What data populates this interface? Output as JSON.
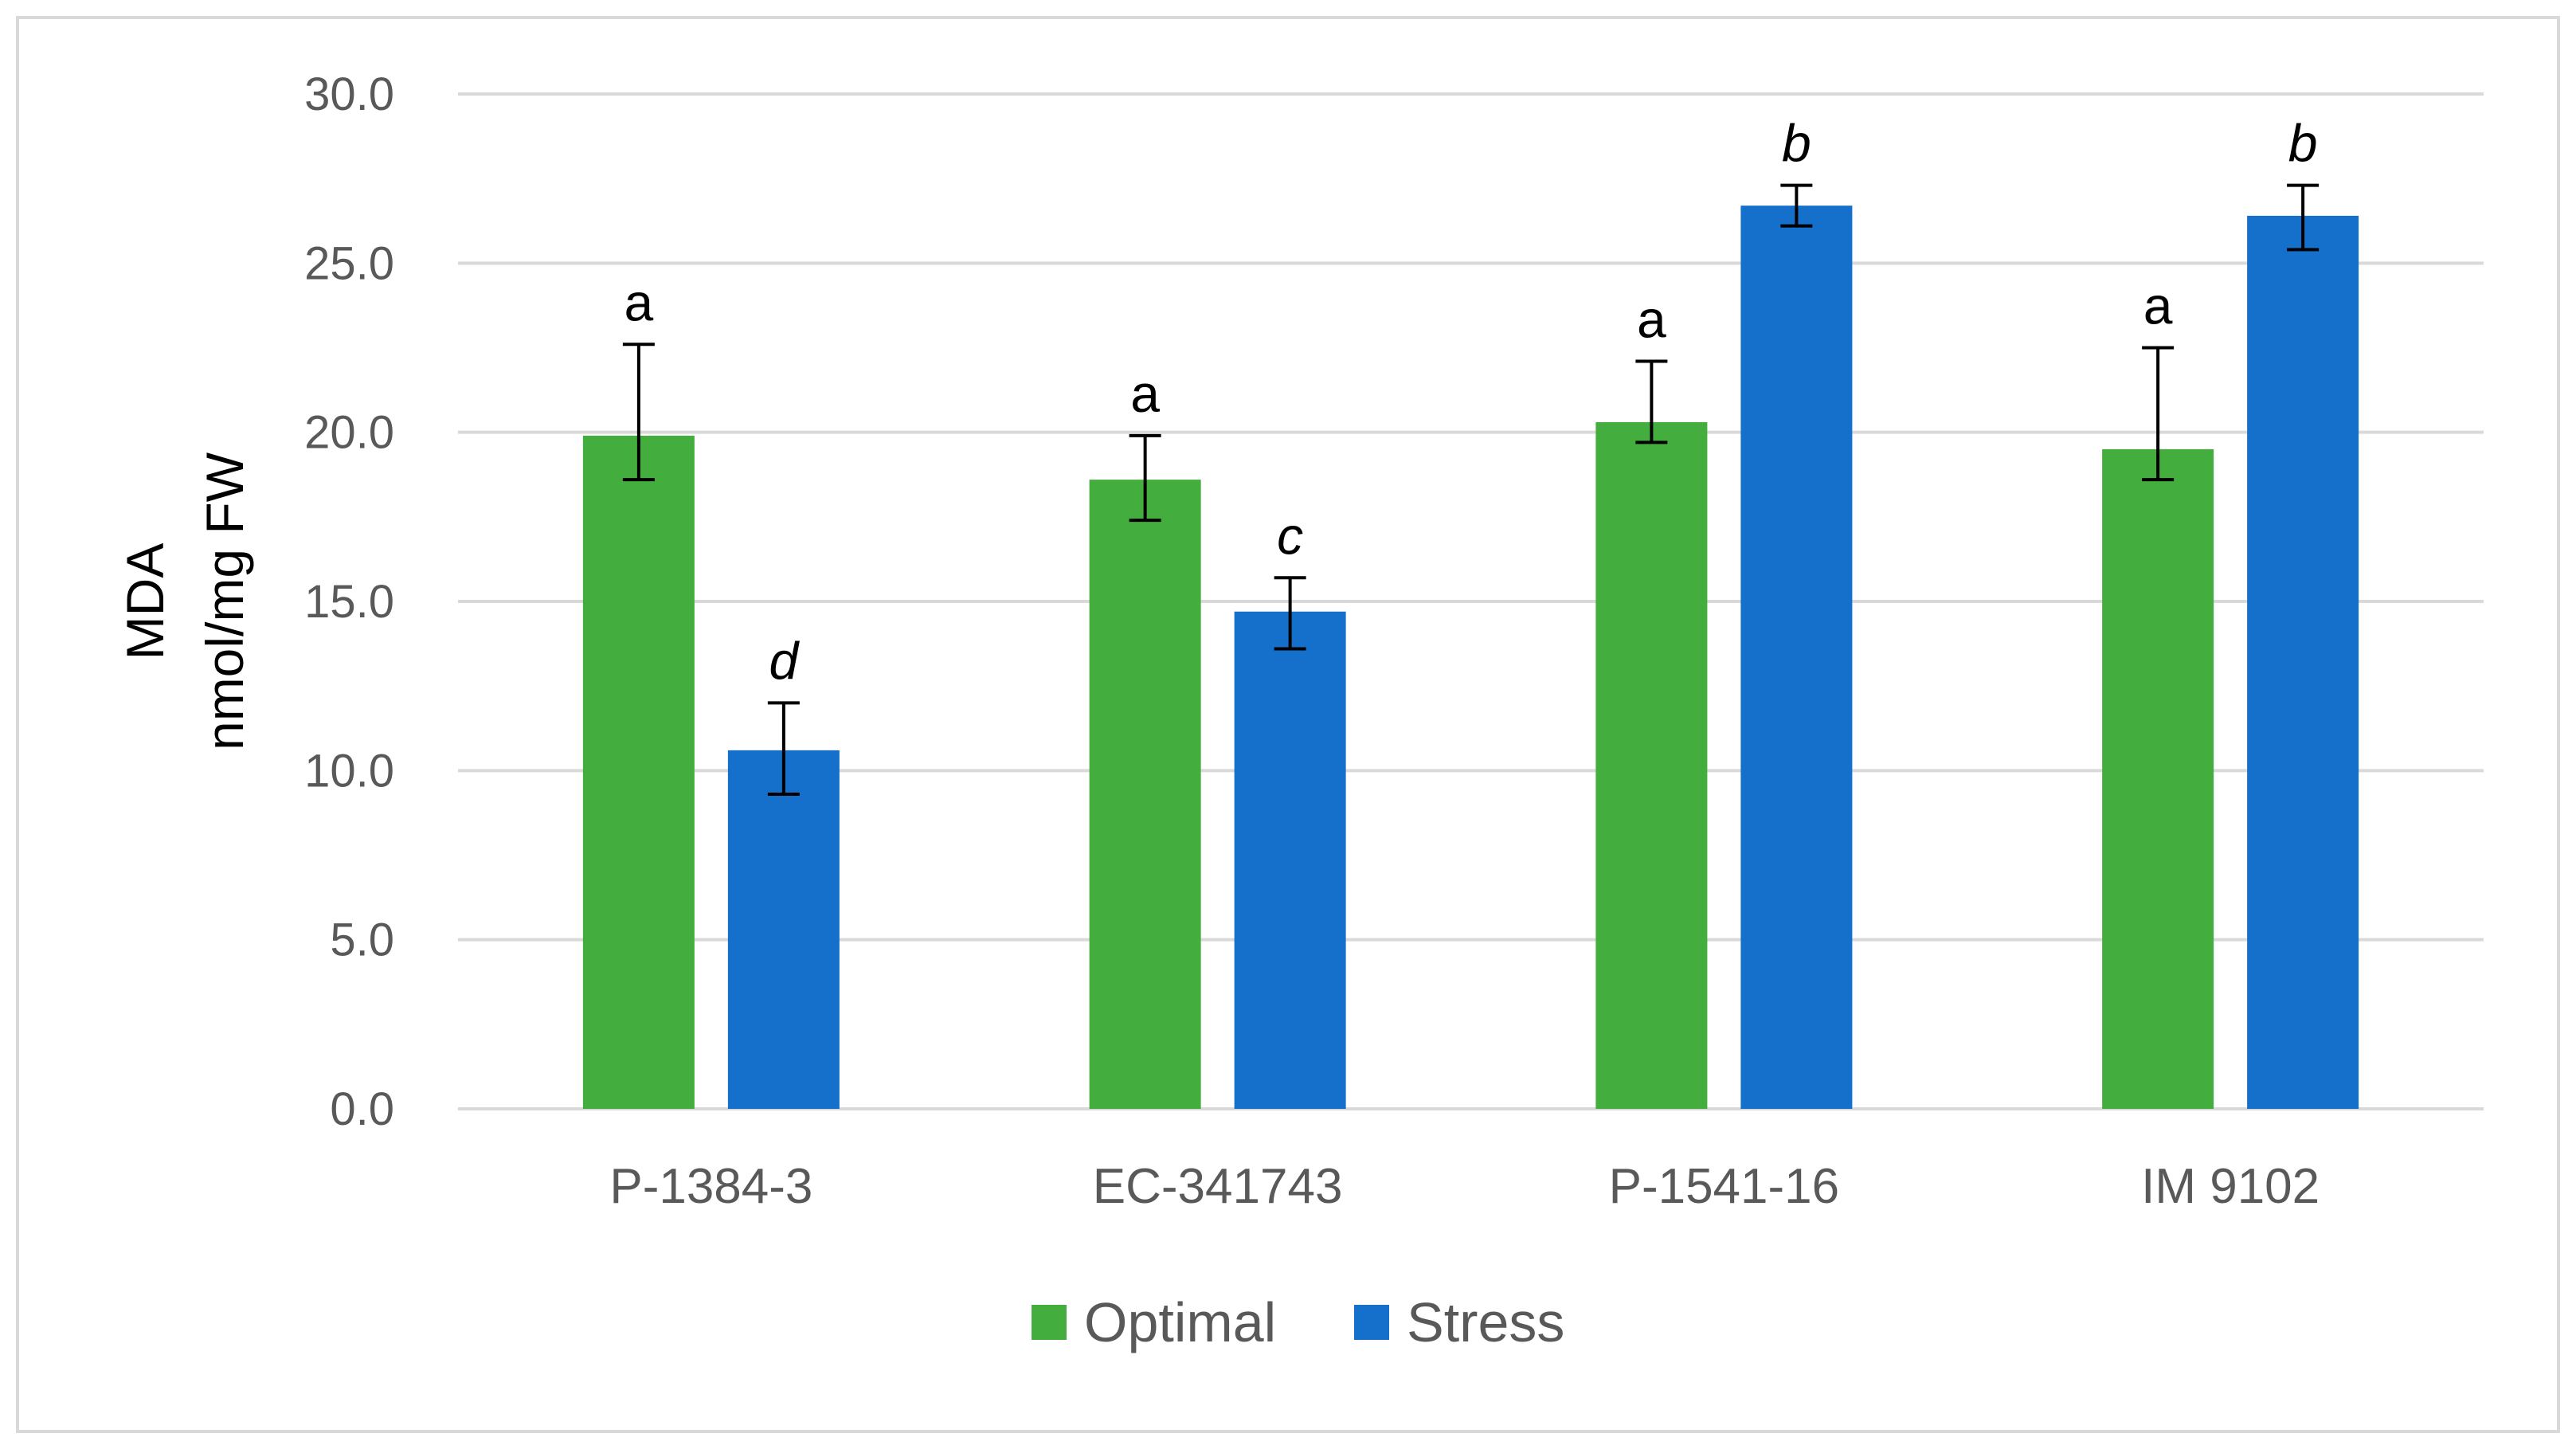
{
  "chart_data": {
    "type": "bar",
    "title": "",
    "xlabel": "",
    "ylabel_lines": [
      "MDA",
      "nmol/mg FW"
    ],
    "ylim": [
      0,
      30
    ],
    "yticks": [
      "0.0",
      "5.0",
      "10.0",
      "15.0",
      "20.0",
      "25.0",
      "30.0"
    ],
    "grid": true,
    "legend_position": "bottom",
    "categories": [
      "P-1384-3",
      "EC-341743",
      "P-1541-16",
      "IM 9102"
    ],
    "series": [
      {
        "name": "Optimal",
        "color": "#43AE3D",
        "values": [
          19.9,
          18.6,
          20.3,
          19.5
        ],
        "error_low": [
          1.3,
          1.2,
          0.6,
          0.9
        ],
        "error_high": [
          2.7,
          1.3,
          1.8,
          3.0
        ],
        "letters": [
          "a",
          "a",
          "a",
          "a"
        ],
        "letters_italic": false
      },
      {
        "name": "Stress",
        "color": "#1570CC",
        "values": [
          10.6,
          14.7,
          26.7,
          26.4
        ],
        "error_low": [
          1.3,
          1.1,
          0.6,
          1.0
        ],
        "error_high": [
          1.4,
          1.0,
          0.6,
          0.9
        ],
        "letters": [
          "d",
          "c",
          "b",
          "b"
        ],
        "letters_italic": true
      }
    ]
  }
}
